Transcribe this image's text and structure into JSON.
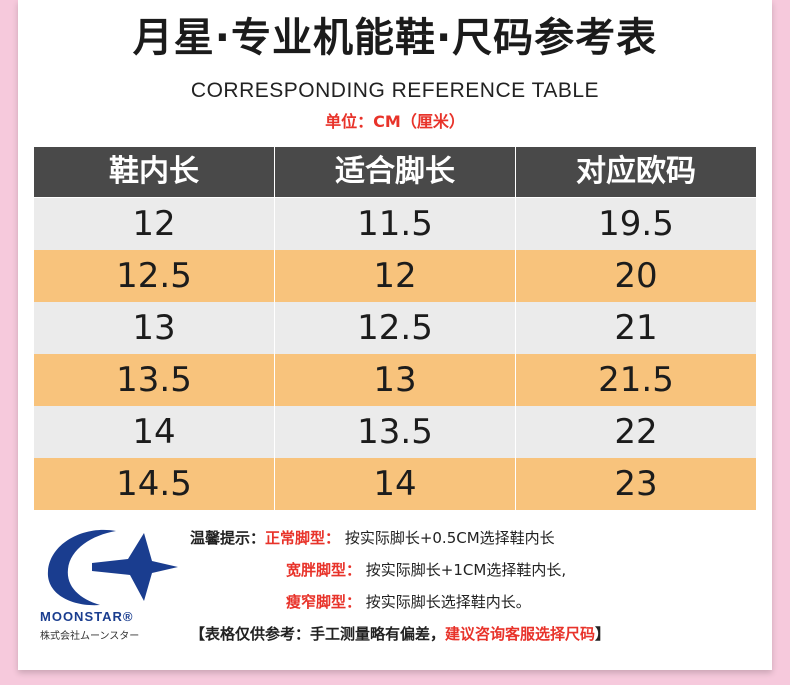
{
  "title": "月星·专业机能鞋·尺码参考表",
  "subtitle": "CORRESPONDING REFERENCE TABLE",
  "unit": "单位：CM（厘米）",
  "table": {
    "headers": [
      "鞋内长",
      "适合脚长",
      "对应欧码"
    ],
    "rows": [
      [
        "12",
        "11.5",
        "19.5"
      ],
      [
        "12.5",
        "12",
        "20"
      ],
      [
        "13",
        "12.5",
        "21"
      ],
      [
        "13.5",
        "13",
        "21.5"
      ],
      [
        "14",
        "13.5",
        "22"
      ],
      [
        "14.5",
        "14",
        "23"
      ]
    ]
  },
  "logo": {
    "brand": "MOONSTAR®",
    "jp": "株式会社ムーンスター"
  },
  "tips": {
    "prefix": "温馨提示：",
    "items": [
      {
        "label": "正常脚型：",
        "text": "按实际脚长+0.5CM选择鞋内长"
      },
      {
        "label": "宽胖脚型：",
        "text": "按实际脚长+1CM选择鞋内长,"
      },
      {
        "label": "瘦窄脚型：",
        "text": "按实际脚长选择鞋内长。"
      }
    ],
    "note_part1": "【表格仅供参考：手工测量略有偏差，",
    "note_part2": "建议咨询客服选择尺码",
    "note_part3": "】"
  },
  "colors": {
    "background": "#f6c9dc",
    "header": "#494949",
    "row_grey": "#ebebeb",
    "row_orange": "#f8c37c",
    "accent_red": "#e8332a",
    "logo_blue": "#1a3d8f"
  }
}
